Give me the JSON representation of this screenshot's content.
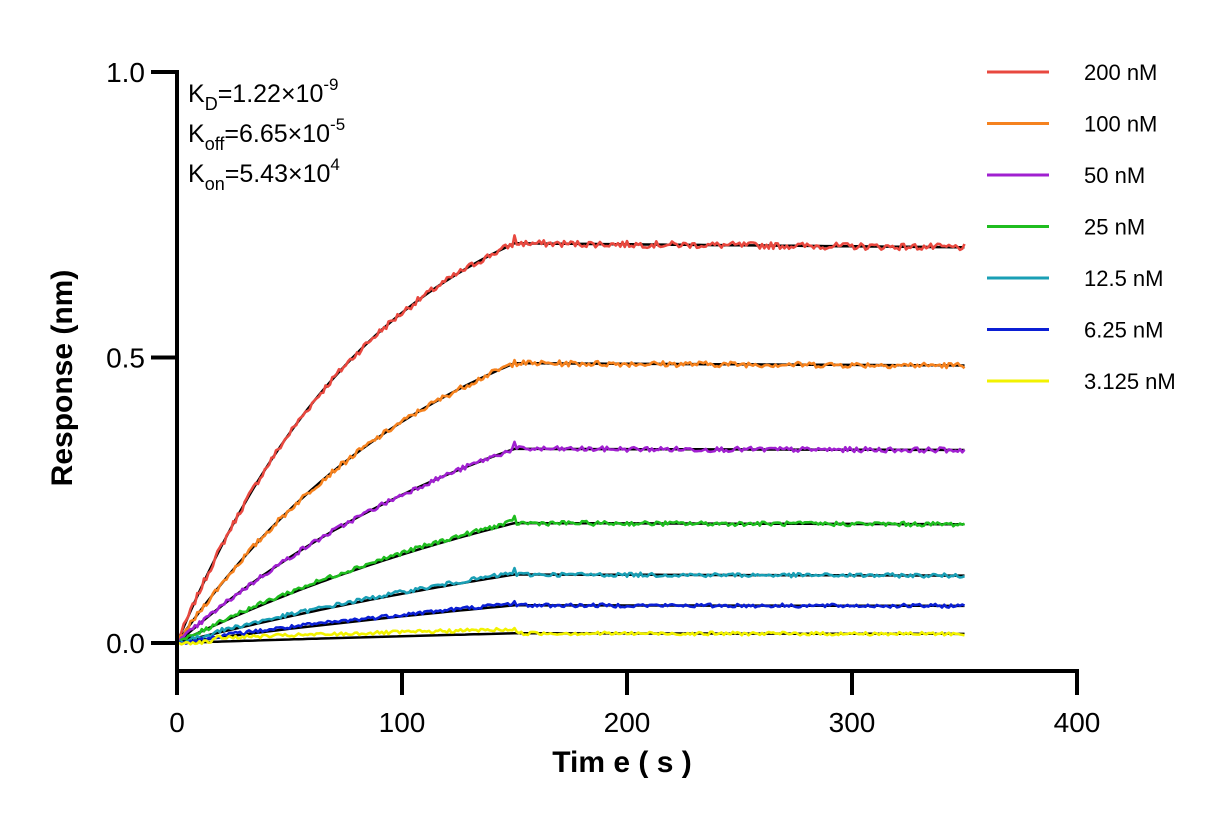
{
  "chart_data": {
    "type": "line",
    "xlabel": "Tim e ( s )",
    "ylabel": "Response (nm)",
    "xlim": [
      0,
      400
    ],
    "ylim": [
      -0.05,
      1.0
    ],
    "x_ticks": [
      0,
      100,
      200,
      300,
      400
    ],
    "x_tick_labels": [
      "0",
      "100",
      "200",
      "300",
      "400"
    ],
    "y_ticks": [
      0.0,
      0.5,
      1.0
    ],
    "y_tick_labels": [
      "0.0",
      "0.5",
      "1.0"
    ],
    "grid": false,
    "legend_position": "right",
    "association_end_s": 150,
    "dissociation_end_s": 350,
    "annotations": [
      {
        "main": "K",
        "sub": "D",
        "value": "=1.22×10",
        "exp": "-9"
      },
      {
        "main": "K",
        "sub": "off",
        "value": "=6.65×10",
        "exp": "-5"
      },
      {
        "main": "K",
        "sub": "on",
        "value": "=5.43×10",
        "exp": "4"
      }
    ],
    "fit_color": "#000000",
    "series": [
      {
        "name": "200 nM",
        "color": "#e8483f",
        "plateau": 0.7,
        "end": 0.693
      },
      {
        "name": "100 nM",
        "color": "#f5821f",
        "plateau": 0.49,
        "end": 0.486
      },
      {
        "name": "50 nM",
        "color": "#a020d0",
        "plateau": 0.34,
        "end": 0.338
      },
      {
        "name": "25 nM",
        "color": "#1fbd1f",
        "plateau": 0.21,
        "end": 0.208
      },
      {
        "name": "12.5 nM",
        "color": "#1a9fb5",
        "plateau": 0.12,
        "end": 0.118
      },
      {
        "name": "6.25 nM",
        "color": "#0b1fd4",
        "plateau": 0.066,
        "end": 0.065
      },
      {
        "name": "3.125 nM",
        "color": "#f2f200",
        "plateau": 0.017,
        "end": 0.016
      }
    ]
  }
}
